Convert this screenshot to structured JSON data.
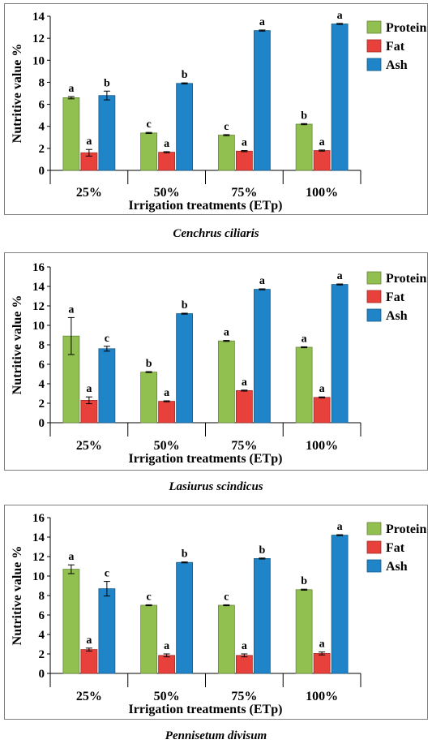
{
  "chart_data": [
    {
      "type": "bar",
      "caption": "Cenchrus ciliaris",
      "categories": [
        "25%",
        "50%",
        "75%",
        "100%"
      ],
      "xlabel": "Irrigation treatments (ETp)",
      "ylabel": "Nutritive value %",
      "ylim": [
        0,
        14
      ],
      "yticks": [
        0,
        2,
        4,
        6,
        8,
        10,
        12,
        14
      ],
      "legend_position": "top-right",
      "series": [
        {
          "name": "Protein",
          "color": "#92C050",
          "values": [
            6.6,
            3.4,
            3.2,
            4.2
          ],
          "errors": [
            0.1,
            0.05,
            0.05,
            0.05
          ],
          "labels": [
            "a",
            "c",
            "c",
            "b"
          ]
        },
        {
          "name": "Fat",
          "color": "#E8413B",
          "values": [
            1.6,
            1.65,
            1.75,
            1.8
          ],
          "errors": [
            0.3,
            0.05,
            0.05,
            0.05
          ],
          "labels": [
            "a",
            "a",
            "a",
            "a"
          ]
        },
        {
          "name": "Ash",
          "color": "#1F84C8",
          "values": [
            6.8,
            7.9,
            12.7,
            13.3
          ],
          "errors": [
            0.4,
            0.05,
            0.05,
            0.05
          ],
          "labels": [
            "b",
            "b",
            "a",
            "a"
          ]
        }
      ]
    },
    {
      "type": "bar",
      "caption": "Lasiurus scindicus",
      "categories": [
        "25%",
        "50%",
        "75%",
        "100%"
      ],
      "xlabel": "Irrigation treatments (ETp)",
      "ylabel": "Nutritive value %",
      "ylim": [
        0,
        16
      ],
      "yticks": [
        0,
        2,
        4,
        6,
        8,
        10,
        12,
        14,
        16
      ],
      "legend_position": "top-right",
      "series": [
        {
          "name": "Protein",
          "color": "#92C050",
          "values": [
            8.9,
            5.2,
            8.4,
            7.75
          ],
          "errors": [
            1.9,
            0.05,
            0.05,
            0.05
          ],
          "labels": [
            "a",
            "b",
            "a",
            "a"
          ]
        },
        {
          "name": "Fat",
          "color": "#E8413B",
          "values": [
            2.3,
            2.2,
            3.3,
            2.6
          ],
          "errors": [
            0.35,
            0.05,
            0.05,
            0.05
          ],
          "labels": [
            "a",
            "a",
            "a",
            "a"
          ]
        },
        {
          "name": "Ash",
          "color": "#1F84C8",
          "values": [
            7.6,
            11.2,
            13.7,
            14.2
          ],
          "errors": [
            0.25,
            0.05,
            0.05,
            0.05
          ],
          "labels": [
            "c",
            "b",
            "a",
            "a"
          ]
        }
      ]
    },
    {
      "type": "bar",
      "caption": "Pennisetum divisum",
      "categories": [
        "25%",
        "50%",
        "75%",
        "100%"
      ],
      "xlabel": "Irrigation treatments (ETp)",
      "ylabel": "Nutritive value %",
      "ylim": [
        0,
        16
      ],
      "yticks": [
        0,
        2,
        4,
        6,
        8,
        10,
        12,
        14,
        16
      ],
      "legend_position": "top-right",
      "series": [
        {
          "name": "Protein",
          "color": "#92C050",
          "values": [
            10.7,
            7.0,
            7.0,
            8.6
          ],
          "errors": [
            0.45,
            0.05,
            0.05,
            0.05
          ],
          "labels": [
            "a",
            "c",
            "c",
            "b"
          ]
        },
        {
          "name": "Fat",
          "color": "#E8413B",
          "values": [
            2.45,
            1.85,
            1.85,
            2.05
          ],
          "errors": [
            0.15,
            0.15,
            0.15,
            0.15
          ],
          "labels": [
            "a",
            "a",
            "a",
            "a"
          ]
        },
        {
          "name": "Ash",
          "color": "#1F84C8",
          "values": [
            8.7,
            11.4,
            11.8,
            14.2
          ],
          "errors": [
            0.75,
            0.05,
            0.05,
            0.05
          ],
          "labels": [
            "c",
            "b",
            "b",
            "a"
          ]
        }
      ]
    }
  ]
}
